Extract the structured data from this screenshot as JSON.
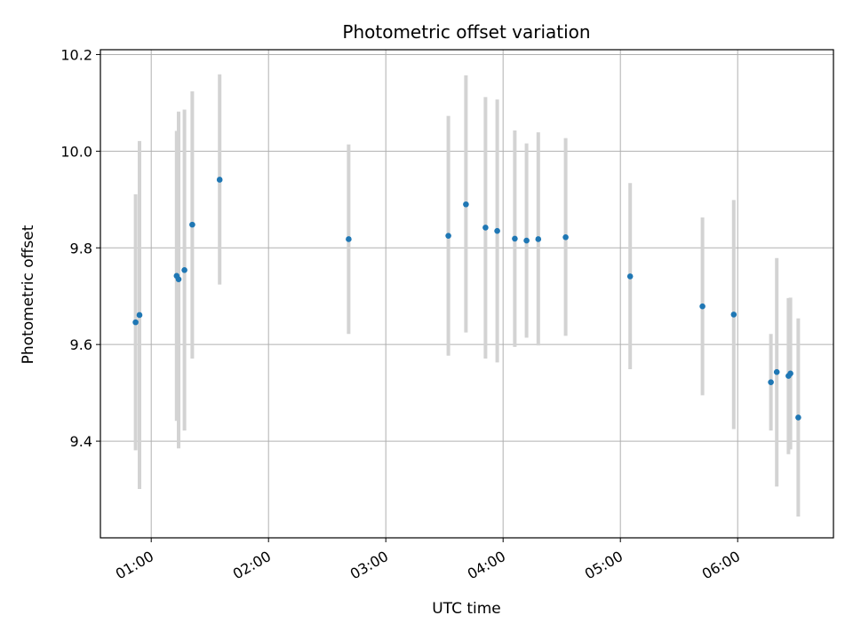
{
  "chart_data": {
    "type": "scatter",
    "title": "Photometric offset variation",
    "xlabel": "UTC time",
    "ylabel": "Photometric offset",
    "xlim": [
      "00:34",
      "06:49"
    ],
    "ylim": [
      9.2,
      10.21
    ],
    "x_ticks": [
      "01:00",
      "02:00",
      "03:00",
      "04:00",
      "05:00",
      "06:00"
    ],
    "y_ticks": [
      9.4,
      9.6,
      9.8,
      10.0,
      10.2
    ],
    "grid": true,
    "colors": {
      "point": "#1f77b4",
      "errorbar": "#d3d3d3",
      "grid": "#b0b0b0"
    },
    "points": [
      {
        "x": "00:52",
        "y": 9.646,
        "y_low": 9.381,
        "y_high": 9.911
      },
      {
        "x": "00:54",
        "y": 9.661,
        "y_low": 9.301,
        "y_high": 10.021
      },
      {
        "x": "01:13",
        "y": 9.742,
        "y_low": 9.442,
        "y_high": 10.042
      },
      {
        "x": "01:14",
        "y": 9.735,
        "y_low": 9.385,
        "y_high": 10.082
      },
      {
        "x": "01:17",
        "y": 9.754,
        "y_low": 9.422,
        "y_high": 10.086
      },
      {
        "x": "01:21",
        "y": 9.848,
        "y_low": 9.571,
        "y_high": 10.124
      },
      {
        "x": "01:35",
        "y": 9.941,
        "y_low": 9.724,
        "y_high": 10.159
      },
      {
        "x": "02:41",
        "y": 9.818,
        "y_low": 9.622,
        "y_high": 10.014
      },
      {
        "x": "03:32",
        "y": 9.825,
        "y_low": 9.577,
        "y_high": 10.073
      },
      {
        "x": "03:41",
        "y": 9.89,
        "y_low": 9.625,
        "y_high": 10.157
      },
      {
        "x": "03:51",
        "y": 9.842,
        "y_low": 9.571,
        "y_high": 10.112
      },
      {
        "x": "03:57",
        "y": 9.835,
        "y_low": 9.563,
        "y_high": 10.107
      },
      {
        "x": "04:06",
        "y": 9.819,
        "y_low": 9.595,
        "y_high": 10.043
      },
      {
        "x": "04:12",
        "y": 9.815,
        "y_low": 9.614,
        "y_high": 10.016
      },
      {
        "x": "04:18",
        "y": 9.818,
        "y_low": 9.598,
        "y_high": 10.039
      },
      {
        "x": "04:32",
        "y": 9.822,
        "y_low": 9.618,
        "y_high": 10.027
      },
      {
        "x": "05:05",
        "y": 9.741,
        "y_low": 9.549,
        "y_high": 9.934
      },
      {
        "x": "05:42",
        "y": 9.679,
        "y_low": 9.495,
        "y_high": 9.863
      },
      {
        "x": "05:58",
        "y": 9.662,
        "y_low": 9.425,
        "y_high": 9.899
      },
      {
        "x": "06:17",
        "y": 9.522,
        "y_low": 9.422,
        "y_high": 9.622
      },
      {
        "x": "06:20",
        "y": 9.543,
        "y_low": 9.306,
        "y_high": 9.779
      },
      {
        "x": "06:26",
        "y": 9.535,
        "y_low": 9.373,
        "y_high": 9.696
      },
      {
        "x": "06:27",
        "y": 9.54,
        "y_low": 9.383,
        "y_high": 9.697
      },
      {
        "x": "06:31",
        "y": 9.449,
        "y_low": 9.244,
        "y_high": 9.654
      }
    ]
  }
}
